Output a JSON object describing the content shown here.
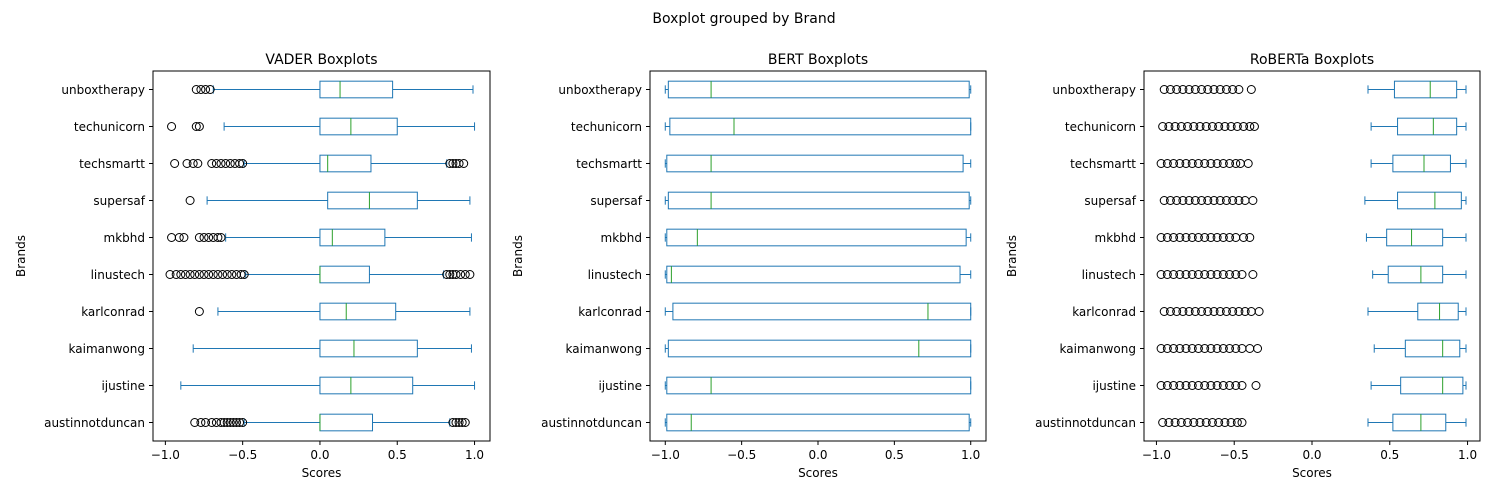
{
  "figure": {
    "suptitle": "Boxplot grouped by Brand"
  },
  "colors": {
    "box": "#1f77b4",
    "median": "#2ca02c",
    "flier": "#000000",
    "axis": "#000000"
  },
  "chart_data": [
    {
      "type": "boxplot",
      "orientation": "horizontal",
      "title": "VADER Boxplots",
      "xlabel": "Scores",
      "ylabel": "Brands",
      "xlim": [
        -1.08,
        1.1
      ],
      "xticks": [
        -1.0,
        -0.5,
        0.0,
        0.5,
        1.0
      ],
      "xtick_labels": [
        "−1.0",
        "−0.5",
        "0.0",
        "0.5",
        "1.0"
      ],
      "categories": [
        "austinnotduncan",
        "ijustine",
        "kaimanwong",
        "karlconrad",
        "linustech",
        "mkbhd",
        "supersaf",
        "techsmartt",
        "techunicorn",
        "unboxtherapy"
      ],
      "boxes": [
        {
          "whislo": -0.49,
          "q1": 0.0,
          "med": 0.0,
          "q3": 0.34,
          "whishi": 0.84,
          "fliers": [
            -0.81,
            -0.77,
            -0.74,
            -0.7,
            -0.67,
            -0.64,
            -0.62,
            -0.6,
            -0.58,
            -0.56,
            -0.54,
            -0.52,
            -0.5,
            0.86,
            0.88,
            0.9,
            0.92,
            0.94
          ]
        },
        {
          "whislo": -0.9,
          "q1": 0.0,
          "med": 0.2,
          "q3": 0.6,
          "whishi": 1.0,
          "fliers": []
        },
        {
          "whislo": -0.82,
          "q1": 0.0,
          "med": 0.22,
          "q3": 0.63,
          "whishi": 0.98,
          "fliers": []
        },
        {
          "whislo": -0.66,
          "q1": 0.0,
          "med": 0.17,
          "q3": 0.49,
          "whishi": 0.97,
          "fliers": [
            -0.78
          ]
        },
        {
          "whislo": -0.48,
          "q1": 0.0,
          "med": 0.0,
          "q3": 0.32,
          "whishi": 0.8,
          "fliers": [
            -0.97,
            -0.93,
            -0.9,
            -0.87,
            -0.84,
            -0.81,
            -0.78,
            -0.75,
            -0.72,
            -0.69,
            -0.66,
            -0.63,
            -0.6,
            -0.57,
            -0.54,
            -0.51,
            -0.49,
            0.82,
            0.84,
            0.86,
            0.88,
            0.91,
            0.94,
            0.97
          ]
        },
        {
          "whislo": -0.61,
          "q1": 0.0,
          "med": 0.08,
          "q3": 0.42,
          "whishi": 0.98,
          "fliers": [
            -0.96,
            -0.91,
            -0.88,
            -0.78,
            -0.75,
            -0.72,
            -0.69,
            -0.66,
            -0.64
          ]
        },
        {
          "whislo": -0.73,
          "q1": 0.05,
          "med": 0.32,
          "q3": 0.63,
          "whishi": 0.97,
          "fliers": [
            -0.84
          ]
        },
        {
          "whislo": -0.49,
          "q1": 0.0,
          "med": 0.05,
          "q3": 0.33,
          "whishi": 0.82,
          "fliers": [
            -0.94,
            -0.86,
            -0.82,
            -0.79,
            -0.7,
            -0.67,
            -0.64,
            -0.61,
            -0.58,
            -0.55,
            -0.52,
            -0.5,
            0.84,
            0.86,
            0.88,
            0.9,
            0.93
          ]
        },
        {
          "whislo": -0.62,
          "q1": 0.0,
          "med": 0.2,
          "q3": 0.5,
          "whishi": 1.0,
          "fliers": [
            -0.96,
            -0.8,
            -0.78
          ]
        },
        {
          "whislo": -0.69,
          "q1": 0.0,
          "med": 0.13,
          "q3": 0.47,
          "whishi": 0.99,
          "fliers": [
            -0.8,
            -0.77,
            -0.74,
            -0.71
          ]
        }
      ]
    },
    {
      "type": "boxplot",
      "orientation": "horizontal",
      "title": "BERT Boxplots",
      "xlabel": "Scores",
      "ylabel": "Brands",
      "xlim": [
        -1.1,
        1.1
      ],
      "xticks": [
        -1.0,
        -0.5,
        0.0,
        0.5,
        1.0
      ],
      "xtick_labels": [
        "−1.0",
        "−0.5",
        "0.0",
        "0.5",
        "1.0"
      ],
      "categories": [
        "austinnotduncan",
        "ijustine",
        "kaimanwong",
        "karlconrad",
        "linustech",
        "mkbhd",
        "supersaf",
        "techsmartt",
        "techunicorn",
        "unboxtherapy"
      ],
      "boxes": [
        {
          "whislo": -1.0,
          "q1": -0.99,
          "med": -0.83,
          "q3": 0.99,
          "whishi": 1.0,
          "fliers": []
        },
        {
          "whislo": -1.0,
          "q1": -0.99,
          "med": -0.7,
          "q3": 1.0,
          "whishi": 1.0,
          "fliers": []
        },
        {
          "whislo": -1.0,
          "q1": -0.98,
          "med": 0.66,
          "q3": 1.0,
          "whishi": 1.0,
          "fliers": []
        },
        {
          "whislo": -1.0,
          "q1": -0.95,
          "med": 0.72,
          "q3": 1.0,
          "whishi": 1.0,
          "fliers": []
        },
        {
          "whislo": -1.0,
          "q1": -0.99,
          "med": -0.96,
          "q3": 0.93,
          "whishi": 1.0,
          "fliers": []
        },
        {
          "whislo": -1.0,
          "q1": -0.99,
          "med": -0.79,
          "q3": 0.97,
          "whishi": 1.0,
          "fliers": []
        },
        {
          "whislo": -1.0,
          "q1": -0.98,
          "med": -0.7,
          "q3": 0.99,
          "whishi": 1.0,
          "fliers": []
        },
        {
          "whislo": -1.0,
          "q1": -0.99,
          "med": -0.7,
          "q3": 0.95,
          "whishi": 1.0,
          "fliers": []
        },
        {
          "whislo": -1.0,
          "q1": -0.97,
          "med": -0.55,
          "q3": 1.0,
          "whishi": 1.0,
          "fliers": []
        },
        {
          "whislo": -1.0,
          "q1": -0.98,
          "med": -0.7,
          "q3": 0.99,
          "whishi": 1.0,
          "fliers": []
        }
      ]
    },
    {
      "type": "boxplot",
      "orientation": "horizontal",
      "title": "RoBERTa Boxplots",
      "xlabel": "Scores",
      "ylabel": "Brands",
      "xlim": [
        -1.08,
        1.08
      ],
      "xticks": [
        -1.0,
        -0.5,
        0.0,
        0.5,
        1.0
      ],
      "xtick_labels": [
        "−1.0",
        "−0.5",
        "0.0",
        "0.5",
        "1.0"
      ],
      "categories": [
        "austinnotduncan",
        "ijustine",
        "kaimanwong",
        "karlconrad",
        "linustech",
        "mkbhd",
        "supersaf",
        "techsmartt",
        "techunicorn",
        "unboxtherapy"
      ],
      "boxes": [
        {
          "whislo": 0.36,
          "q1": 0.52,
          "med": 0.7,
          "q3": 0.86,
          "whishi": 0.99,
          "fliers": [
            -0.96,
            -0.92,
            -0.88,
            -0.84,
            -0.8,
            -0.76,
            -0.72,
            -0.68,
            -0.64,
            -0.6,
            -0.56,
            -0.52,
            -0.48,
            -0.45
          ]
        },
        {
          "whislo": 0.38,
          "q1": 0.57,
          "med": 0.84,
          "q3": 0.97,
          "whishi": 0.99,
          "fliers": [
            -0.97,
            -0.93,
            -0.89,
            -0.85,
            -0.81,
            -0.77,
            -0.73,
            -0.69,
            -0.65,
            -0.61,
            -0.57,
            -0.53,
            -0.49,
            -0.45,
            -0.36
          ]
        },
        {
          "whislo": 0.4,
          "q1": 0.6,
          "med": 0.84,
          "q3": 0.95,
          "whishi": 0.99,
          "fliers": [
            -0.97,
            -0.93,
            -0.89,
            -0.85,
            -0.81,
            -0.77,
            -0.73,
            -0.69,
            -0.65,
            -0.61,
            -0.57,
            -0.53,
            -0.49,
            -0.45,
            -0.4,
            -0.35
          ]
        },
        {
          "whislo": 0.36,
          "q1": 0.68,
          "med": 0.82,
          "q3": 0.94,
          "whishi": 0.99,
          "fliers": [
            -0.95,
            -0.91,
            -0.87,
            -0.83,
            -0.79,
            -0.75,
            -0.71,
            -0.67,
            -0.63,
            -0.59,
            -0.55,
            -0.51,
            -0.47,
            -0.43,
            -0.39,
            -0.34
          ]
        },
        {
          "whislo": 0.39,
          "q1": 0.49,
          "med": 0.7,
          "q3": 0.84,
          "whishi": 0.99,
          "fliers": [
            -0.97,
            -0.93,
            -0.89,
            -0.85,
            -0.81,
            -0.77,
            -0.73,
            -0.69,
            -0.65,
            -0.61,
            -0.57,
            -0.53,
            -0.49,
            -0.45,
            -0.38
          ]
        },
        {
          "whislo": 0.35,
          "q1": 0.48,
          "med": 0.64,
          "q3": 0.84,
          "whishi": 0.99,
          "fliers": [
            -0.97,
            -0.93,
            -0.89,
            -0.85,
            -0.81,
            -0.77,
            -0.73,
            -0.69,
            -0.65,
            -0.61,
            -0.57,
            -0.53,
            -0.49,
            -0.44,
            -0.4
          ]
        },
        {
          "whislo": 0.34,
          "q1": 0.55,
          "med": 0.79,
          "q3": 0.96,
          "whishi": 0.99,
          "fliers": [
            -0.95,
            -0.91,
            -0.87,
            -0.83,
            -0.79,
            -0.75,
            -0.71,
            -0.67,
            -0.63,
            -0.59,
            -0.55,
            -0.51,
            -0.47,
            -0.43,
            -0.38
          ]
        },
        {
          "whislo": 0.38,
          "q1": 0.52,
          "med": 0.72,
          "q3": 0.89,
          "whishi": 0.99,
          "fliers": [
            -0.97,
            -0.93,
            -0.89,
            -0.85,
            -0.81,
            -0.77,
            -0.73,
            -0.69,
            -0.65,
            -0.61,
            -0.57,
            -0.53,
            -0.49,
            -0.46,
            -0.41
          ]
        },
        {
          "whislo": 0.38,
          "q1": 0.55,
          "med": 0.78,
          "q3": 0.93,
          "whishi": 0.99,
          "fliers": [
            -0.96,
            -0.92,
            -0.88,
            -0.84,
            -0.8,
            -0.76,
            -0.72,
            -0.68,
            -0.64,
            -0.6,
            -0.56,
            -0.52,
            -0.48,
            -0.44,
            -0.4,
            -0.37
          ]
        },
        {
          "whislo": 0.36,
          "q1": 0.53,
          "med": 0.76,
          "q3": 0.93,
          "whishi": 0.99,
          "fliers": [
            -0.95,
            -0.91,
            -0.87,
            -0.83,
            -0.79,
            -0.75,
            -0.71,
            -0.67,
            -0.63,
            -0.59,
            -0.55,
            -0.51,
            -0.47,
            -0.39
          ]
        }
      ]
    }
  ]
}
